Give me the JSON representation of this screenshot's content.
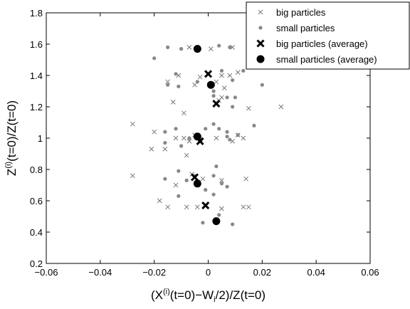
{
  "chart_data": {
    "type": "scatter",
    "xlabel_parts": [
      "(X",
      "(i)",
      "(t=0)−W",
      "i",
      "/2)/Z(t=0)"
    ],
    "ylabel_parts": [
      "Z",
      "(i)",
      "(t=0)/Z(t=0)"
    ],
    "xlim": [
      -0.06,
      0.06
    ],
    "ylim": [
      0.2,
      1.8
    ],
    "x_ticks": [
      -0.06,
      -0.04,
      -0.02,
      0,
      0.02,
      0.04,
      0.06
    ],
    "x_tick_labels": [
      "−0.06",
      "−0.04",
      "−0.02",
      "0",
      "0.02",
      "0.04",
      "0.06"
    ],
    "y_ticks": [
      0.2,
      0.4,
      0.6,
      0.8,
      1.0,
      1.2,
      1.4,
      1.6,
      1.8
    ],
    "y_tick_labels": [
      "0.2",
      "0.4",
      "0.6",
      "0.8",
      "1",
      "1.2",
      "1.4",
      "1.6",
      "1.8"
    ],
    "grid": false,
    "legend_position": "top-right",
    "series": [
      {
        "name": "big particles",
        "marker": "x",
        "color": "#777777",
        "points": [
          [
            -0.007,
            1.58
          ],
          [
            0.001,
            1.57
          ],
          [
            0.009,
            1.58
          ],
          [
            -0.011,
            1.4
          ],
          [
            -0.003,
            1.39
          ],
          [
            0.005,
            1.4
          ],
          [
            0.008,
            1.4
          ],
          [
            0.011,
            1.42
          ],
          [
            0.003,
            1.36
          ],
          [
            -0.005,
            1.34
          ],
          [
            0.006,
            1.32
          ],
          [
            -0.015,
            1.36
          ],
          [
            0.005,
            1.26
          ],
          [
            0.004,
            1.24
          ],
          [
            -0.013,
            1.23
          ],
          [
            -0.009,
            1.16
          ],
          [
            0.015,
            1.19
          ],
          [
            0.027,
            1.2
          ],
          [
            -0.028,
            1.09
          ],
          [
            -0.02,
            1.04
          ],
          [
            -0.012,
            1.0
          ],
          [
            -0.009,
            1.0
          ],
          [
            -0.007,
            0.98
          ],
          [
            -0.005,
            1.02
          ],
          [
            0.003,
            1.0
          ],
          [
            0.009,
            0.98
          ],
          [
            0.013,
            1.0
          ],
          [
            0.011,
            1.02
          ],
          [
            -0.021,
            0.93
          ],
          [
            -0.016,
            0.93
          ],
          [
            -0.008,
            0.89
          ],
          [
            -0.003,
            0.99
          ],
          [
            -0.028,
            0.76
          ],
          [
            -0.006,
            0.77
          ],
          [
            -0.002,
            0.74
          ],
          [
            0.005,
            0.73
          ],
          [
            0.014,
            0.74
          ],
          [
            -0.012,
            0.7
          ],
          [
            -0.018,
            0.6
          ],
          [
            -0.015,
            0.56
          ],
          [
            -0.008,
            0.56
          ],
          [
            -0.004,
            0.56
          ],
          [
            0.005,
            0.55
          ],
          [
            0.013,
            0.56
          ],
          [
            0.015,
            0.56
          ]
        ]
      },
      {
        "name": "small particles",
        "marker": "dot",
        "color": "#888888",
        "points": [
          [
            -0.02,
            1.51
          ],
          [
            -0.015,
            1.58
          ],
          [
            -0.01,
            1.57
          ],
          [
            -0.004,
            1.58
          ],
          [
            0.004,
            1.59
          ],
          [
            0.008,
            1.58
          ],
          [
            0.016,
            1.57
          ],
          [
            -0.012,
            1.41
          ],
          [
            -0.004,
            1.36
          ],
          [
            0.005,
            1.43
          ],
          [
            0.009,
            1.37
          ],
          [
            0.013,
            1.43
          ],
          [
            -0.011,
            1.33
          ],
          [
            -0.015,
            1.34
          ],
          [
            0.002,
            1.3
          ],
          [
            0.002,
            1.27
          ],
          [
            0.01,
            1.26
          ],
          [
            0.02,
            1.34
          ],
          [
            0.007,
            1.26
          ],
          [
            0.009,
            1.2
          ],
          [
            0.002,
            1.09
          ],
          [
            -0.016,
            1.04
          ],
          [
            -0.012,
            1.06
          ],
          [
            -0.016,
            0.97
          ],
          [
            -0.01,
            0.95
          ],
          [
            -0.007,
            1.0
          ],
          [
            -0.001,
            1.06
          ],
          [
            0.004,
            1.06
          ],
          [
            0.007,
            1.01
          ],
          [
            0.007,
            1.04
          ],
          [
            0.011,
            1.02
          ],
          [
            0.017,
            1.08
          ],
          [
            0.008,
            0.99
          ],
          [
            -0.016,
            0.74
          ],
          [
            -0.011,
            0.79
          ],
          [
            -0.008,
            0.73
          ],
          [
            -0.005,
            0.76
          ],
          [
            0.002,
            0.76
          ],
          [
            0.003,
            0.82
          ],
          [
            0.005,
            0.71
          ],
          [
            0.007,
            0.69
          ],
          [
            -0.001,
            0.67
          ],
          [
            -0.011,
            0.63
          ],
          [
            0.002,
            0.64
          ],
          [
            -0.002,
            0.46
          ],
          [
            0.003,
            0.47
          ],
          [
            0.004,
            0.51
          ],
          [
            0.009,
            0.45
          ]
        ]
      },
      {
        "name": "big particles (average)",
        "marker": "X",
        "color": "#000000",
        "points": [
          [
            0.0,
            1.41
          ],
          [
            0.003,
            1.22
          ],
          [
            -0.003,
            0.98
          ],
          [
            -0.005,
            0.75
          ],
          [
            -0.001,
            0.57
          ]
        ]
      },
      {
        "name": "small particles (average)",
        "marker": "big-dot",
        "color": "#000000",
        "points": [
          [
            -0.004,
            1.57
          ],
          [
            0.001,
            1.34
          ],
          [
            -0.004,
            1.01
          ],
          [
            -0.004,
            0.71
          ],
          [
            0.003,
            0.47
          ]
        ]
      }
    ]
  }
}
